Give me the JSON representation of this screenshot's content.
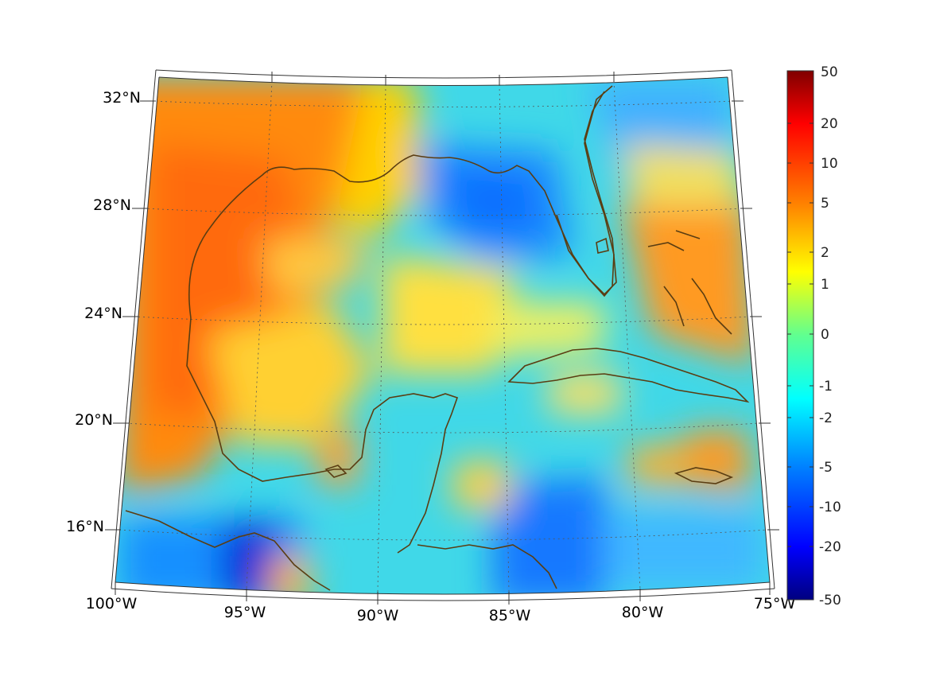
{
  "map": {
    "lat_labels": [
      "32°N",
      "28°N",
      "24°N",
      "20°N",
      "16°N"
    ],
    "lon_labels": [
      "100°W",
      "95°W",
      "90°W",
      "85°W",
      "80°W",
      "75°W"
    ],
    "extent": {
      "lon_min": -100,
      "lon_max": -75,
      "lat_min": 14,
      "lat_max": 33
    },
    "coast_color": "#5a3d12",
    "graticule": "dotted"
  },
  "colorbar": {
    "ticks": [
      "50",
      "20",
      "10",
      "5",
      "2",
      "1",
      "0",
      "-1",
      "-2",
      "-5",
      "-10",
      "-20",
      "-50"
    ],
    "colormap": "jet",
    "colors": [
      "#7f0000",
      "#ff0000",
      "#ff8000",
      "#ffff00",
      "#00e0a0",
      "#00ffff",
      "#0080ff",
      "#0000ff",
      "#00007f"
    ]
  }
}
